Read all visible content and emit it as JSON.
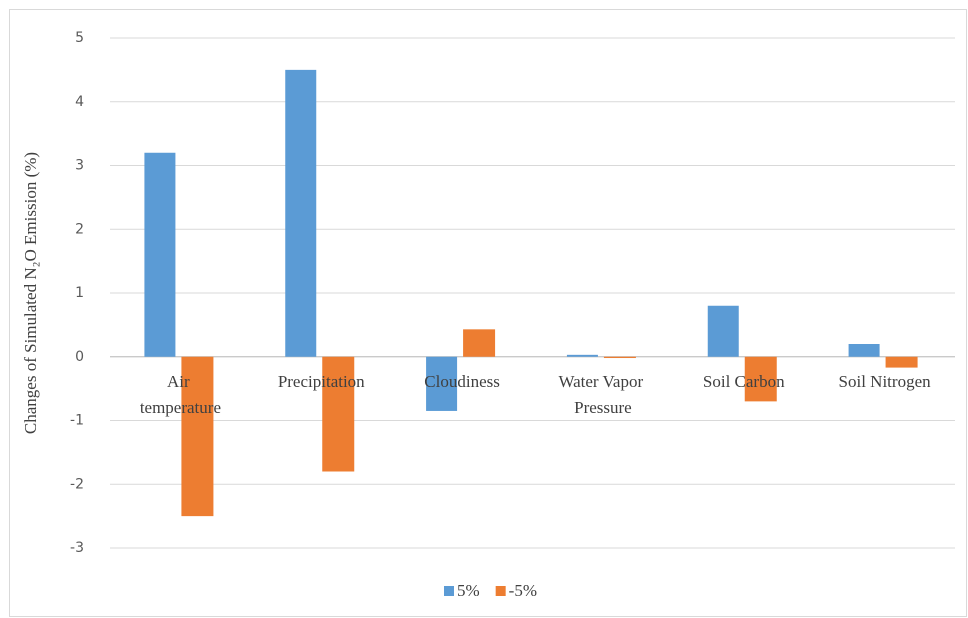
{
  "chart_data": {
    "type": "bar",
    "y_label": "Changes of Simulated N₂O Emission (%)",
    "categories": [
      "Air temperature",
      "Precipitation",
      "Cloudiness",
      "Water Vapor Pressure",
      "Soil Carbon",
      "Soil Nitrogen"
    ],
    "series": [
      {
        "name": "5%",
        "color": "#5b9bd5",
        "values": [
          3.2,
          4.5,
          -0.85,
          0.03,
          0.8,
          0.2
        ]
      },
      {
        "name": "-5%",
        "color": "#ed7d31",
        "values": [
          -2.5,
          -1.8,
          0.43,
          -0.02,
          -0.7,
          -0.17
        ]
      }
    ],
    "ylim": [
      -3,
      5
    ],
    "yticks": [
      -3,
      -2,
      -1,
      0,
      1,
      2,
      3,
      4,
      5
    ],
    "grid": true,
    "legend": "bottom"
  }
}
